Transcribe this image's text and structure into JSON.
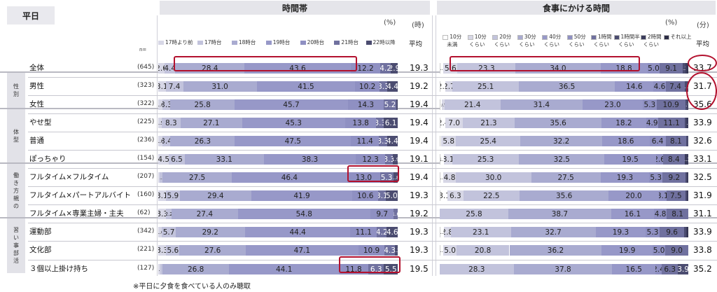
{
  "day_label": "平日",
  "left_title": "時間帯",
  "right_title": "食事にかける時間",
  "n_label": "n=",
  "pct_unit": "(%)",
  "hour_unit": "(時)",
  "min_unit": "(分)",
  "avg_label": "平均",
  "note": "※平日に夕食を食べている人のみ聴取",
  "groups": [
    {
      "name": "性別",
      "rows": [
        1,
        2
      ]
    },
    {
      "name": "体型",
      "rows": [
        3,
        4,
        5
      ]
    },
    {
      "name": "働き方 親の",
      "rows": [
        6,
        7,
        8
      ]
    },
    {
      "name": "習い事 部活",
      "rows": [
        9,
        10,
        11
      ]
    }
  ],
  "colors": {
    "c1": "#d7d7e6",
    "c2": "#c2c3dc",
    "c3": "#a9abd0",
    "c4": "#9798c8",
    "c5": "#8f90c2",
    "c6": "#70719f",
    "c7": "#4b4c70",
    "c8": "#ffffff",
    "highlight": "#b3112e"
  },
  "chart_data": [
    {
      "type": "bar",
      "orientation": "horizontal",
      "stacked": true,
      "title": "時間帯",
      "unit": "(%)",
      "categories": [
        "全体",
        "男性",
        "女性",
        "やせ型",
        "普通",
        "ぽっちゃり",
        "フルタイム×フルタイム",
        "フルタイム×パートアルバイト",
        "フルタイム×専業主婦・主夫",
        "運動部",
        "文化部",
        "３個以上掛け持ち"
      ],
      "n": [
        "(645)",
        "(323)",
        "(322)",
        "(225)",
        "(236)",
        "(154)",
        "(207)",
        "(160)",
        "(62)",
        "(342)",
        "(221)",
        "(127)"
      ],
      "series": [
        {
          "name": "17時より前",
          "values": [
            2.6,
            3.1,
            1.6,
            1.5,
            1.6,
            4.5,
            0.5,
            3.1,
            3.3,
            1.6,
            3.3,
            0.9
          ],
          "labels": [
            "2.6",
            "3.1",
            "1.6",
            "1.5",
            "1.6",
            "4.5",
            "0.5",
            "3.1",
            "3.3",
            "1.6",
            "3.3",
            "0.9"
          ]
        },
        {
          "name": "17時台",
          "values": [
            4.4,
            7.4,
            3.3,
            8.3,
            3.4,
            6.5,
            1.3,
            5.9,
            2.2,
            5.7,
            5.6,
            0.8
          ],
          "labels": [
            "4.4",
            "7.4",
            "3.3",
            "8.3",
            "3.4",
            "6.5",
            "1.3",
            "5.9",
            "2.2",
            "5.7",
            "5.6",
            "0.8"
          ]
        },
        {
          "name": "18時台",
          "values": [
            28.4,
            31.0,
            25.8,
            27.1,
            26.3,
            33.1,
            27.5,
            29.4,
            27.4,
            29.2,
            27.6,
            26.8
          ],
          "labels": [
            "28.4",
            "31.0",
            "25.8",
            "27.1",
            "26.3",
            "33.1",
            "27.5",
            "29.4",
            "27.4",
            "29.2",
            "27.6",
            "26.8"
          ]
        },
        {
          "name": "19時台",
          "values": [
            43.6,
            41.5,
            45.7,
            45.3,
            47.5,
            38.3,
            46.4,
            41.9,
            54.8,
            44.4,
            47.1,
            44.1
          ],
          "labels": [
            "43.6",
            "41.5",
            "45.7",
            "45.3",
            "47.5",
            "38.3",
            "46.4",
            "41.9",
            "54.8",
            "44.4",
            "47.1",
            "44.1"
          ]
        },
        {
          "name": "20時台",
          "values": [
            12.2,
            10.2,
            14.3,
            13.8,
            11.4,
            12.3,
            13.0,
            10.6,
            9.7,
            11.1,
            10.9,
            11.8
          ],
          "labels": [
            "12.2",
            "10.2",
            "14.3",
            "13.8",
            "11.4",
            "12.3",
            "13.0",
            "10.6",
            "9.7",
            "11.1",
            "10.9",
            "11.8"
          ]
        },
        {
          "name": "21時台",
          "values": [
            4.2,
            3.3,
            5.2,
            3.3,
            3.3,
            3.3,
            5.3,
            3.1,
            1.6,
            4.2,
            4.3,
            6.3
          ],
          "labels": [
            "4.2",
            "3.3",
            "5.2",
            "3.3",
            "3.3",
            "3.3",
            "5.3",
            "3.1",
            "1.6",
            "4.2",
            "4.3",
            "6.3"
          ]
        },
        {
          "name": "22時以降",
          "values": [
            2.9,
            4.4,
            0.5,
            6.1,
            4.4,
            1.9,
            1.8,
            5.0,
            0.0,
            4.6,
            1.2,
            5.5
          ],
          "labels": [
            "2.9",
            "4.4",
            "0.5",
            "6.1",
            "4.4",
            "1.9",
            "1.8",
            "5.0",
            "0.0",
            "4.6",
            "1.2",
            "5.5"
          ]
        }
      ],
      "avg_unit": "(時)",
      "avg_values": [
        "19.3",
        "19.2",
        "19.4",
        "19.4",
        "19.4",
        "19.1",
        "19.4",
        "19.3",
        "19.2",
        "19.3",
        "19.3",
        "19.5"
      ]
    },
    {
      "type": "bar",
      "orientation": "horizontal",
      "stacked": true,
      "title": "食事にかける時間",
      "unit": "(%)",
      "categories": [
        "全体",
        "男性",
        "女性",
        "やせ型",
        "普通",
        "ぽっちゃり",
        "フルタイム×フルタイム",
        "フルタイム×パートアルバイト",
        "フルタイム×専業主婦・主夫",
        "運動部",
        "文化部",
        "３個以上掛け持ち"
      ],
      "series": [
        {
          "name": "10分未満",
          "values": [
            1.5,
            2.2,
            0.9,
            2.4,
            0.6,
            1.7,
            1.5,
            3.1,
            0.0,
            1.5,
            1.5,
            0.0
          ],
          "labels": [
            "1.5",
            "2.2",
            "0.9",
            "2.4",
            "0.6",
            "1.7",
            "1.5",
            "3.1",
            "0.0",
            "1.5",
            "1.5",
            "0.0"
          ]
        },
        {
          "name": "10分くらい",
          "values": [
            5.6,
            2.7,
            0.9,
            7.0,
            5.8,
            3.1,
            4.8,
            6.3,
            0.0,
            2.8,
            5.0,
            0.0
          ],
          "labels": [
            "5.6",
            "2.7",
            "0.9",
            "7.0",
            "5.8",
            "3.1",
            "4.8",
            "6.3",
            "0.0",
            "2.8",
            "5.0",
            "0.0"
          ]
        },
        {
          "name": "20分くらい",
          "values": [
            23.3,
            25.1,
            21.4,
            21.3,
            25.4,
            25.3,
            30.0,
            22.5,
            25.8,
            23.1,
            20.8,
            28.3
          ],
          "labels": [
            "23.3",
            "25.1",
            "21.4",
            "21.3",
            "25.4",
            "25.3",
            "30.0",
            "22.5",
            "25.8",
            "23.1",
            "20.8",
            "28.3"
          ]
        },
        {
          "name": "30分くらい",
          "values": [
            34.0,
            36.5,
            31.4,
            35.6,
            32.2,
            32.5,
            27.5,
            35.6,
            38.7,
            32.7,
            36.2,
            37.8
          ],
          "labels": [
            "34.0",
            "36.5",
            "31.4",
            "35.6",
            "32.2",
            "32.5",
            "27.5",
            "35.6",
            "38.7",
            "32.7",
            "36.2",
            "37.8"
          ]
        },
        {
          "name": "40分くらい",
          "values": [
            18.8,
            14.6,
            23.0,
            18.2,
            18.6,
            19.5,
            19.3,
            20.0,
            16.1,
            19.3,
            19.9,
            16.5
          ],
          "labels": [
            "18.8",
            "14.6",
            "23.0",
            "18.2",
            "18.6",
            "19.5",
            "19.3",
            "20.0",
            "16.1",
            "19.3",
            "19.9",
            "16.5"
          ]
        },
        {
          "name": "50分くらい",
          "values": [
            5.0,
            4.6,
            5.3,
            4.9,
            6.4,
            2.6,
            5.3,
            3.1,
            4.8,
            5.3,
            5.0,
            2.4
          ],
          "labels": [
            "5.0",
            "4.6",
            "5.3",
            "4.9",
            "6.4",
            "2.6",
            "5.3",
            "3.1",
            "4.8",
            "5.3",
            "5.0",
            "2.4"
          ]
        },
        {
          "name": "1時間くらい",
          "values": [
            9.1,
            7.4,
            10.9,
            11.1,
            8.1,
            8.4,
            9.2,
            7.5,
            8.1,
            9.6,
            9.0,
            6.3
          ],
          "labels": [
            "9.1",
            "7.4",
            "10.9",
            "11.1",
            "8.1",
            "8.4",
            "9.2",
            "7.5",
            "8.1",
            "9.6",
            "9.0",
            "6.3"
          ]
        },
        {
          "name": "1時間半くらい",
          "values": [
            1.2,
            1.2,
            0.9,
            0.4,
            0.8,
            0.0,
            0.5,
            0.6,
            0.0,
            0.6,
            0.0,
            3.9
          ],
          "labels": [
            "1.2",
            "1.2",
            "0.9",
            "0.4",
            "0.8",
            "0.0",
            "0.5",
            "0.6",
            "0.0",
            "0.6",
            "0.0",
            "3.9"
          ]
        },
        {
          "name": "2時間くらい",
          "values": [
            0.8,
            0.0,
            0.3,
            0.9,
            0.0,
            1.3,
            0.5,
            0.6,
            0.0,
            0.6,
            0.0,
            0.0
          ],
          "labels": [
            "0.8",
            "0.0",
            "0.3",
            "0.9",
            "0.0",
            "1.3",
            "0.5",
            "0.6",
            "0.0",
            "0.6",
            "0.0",
            "0.0"
          ]
        },
        {
          "name": "それ以上",
          "values": [
            0.3,
            0.0,
            0.0,
            0.0,
            0.0,
            0.0,
            0.0,
            0.0,
            0.0,
            0.3,
            0.0,
            0.0
          ],
          "labels": [
            "0.3",
            "0.0",
            "0.0",
            "0.0",
            "0.0",
            "0.0",
            "0.0",
            "0.0",
            "0.0",
            "0.3",
            "0.0",
            "0.0"
          ]
        }
      ],
      "avg_unit": "(分)",
      "avg_values": [
        "33.7",
        "31.7",
        "35.6",
        "33.9",
        "32.6",
        "33.1",
        "32.5",
        "31.9",
        "31.1",
        "33.9",
        "33.8",
        "35.2"
      ]
    }
  ],
  "left_legend": [
    "17時より前",
    "17時台",
    "18時台",
    "19時台",
    "20時台",
    "21時台",
    "22時以降"
  ],
  "right_legend": [
    [
      "10分",
      "未満"
    ],
    [
      "10分",
      "くらい"
    ],
    [
      "20分",
      "くらい"
    ],
    [
      "30分",
      "くらい"
    ],
    [
      "40分",
      "くらい"
    ],
    [
      "50分",
      "くらい"
    ],
    [
      "1時間",
      "くらい"
    ],
    [
      "1時間半",
      "くらい"
    ],
    [
      "2時間",
      "くらい"
    ],
    [
      "それ以上",
      ""
    ]
  ]
}
